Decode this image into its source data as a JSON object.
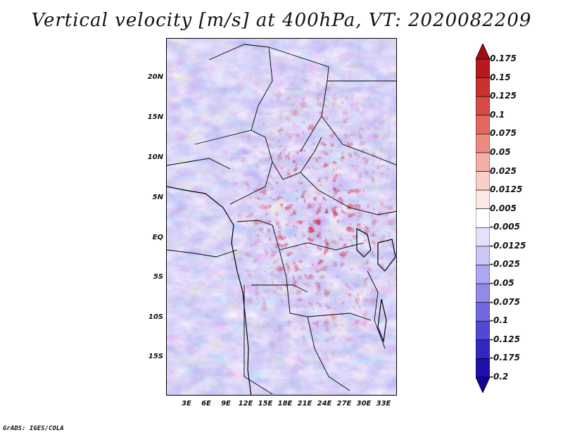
{
  "title": "Vertical velocity [m/s] at 400hPa, VT: 2020082209",
  "footer": "GrADS: IGES/COLA",
  "map": {
    "lon_range": [
      0,
      35
    ],
    "lat_range": [
      -20,
      25
    ],
    "lat_labels": [
      "20N",
      "15N",
      "10N",
      "5N",
      "EQ",
      "5S",
      "10S",
      "15S"
    ],
    "lon_labels": [
      "3E",
      "6E",
      "9E",
      "12E",
      "15E",
      "18E",
      "21E",
      "24E",
      "27E",
      "30E",
      "33E"
    ]
  },
  "colorbar": {
    "labels": [
      "0.175",
      "0.15",
      "0.125",
      "0.1",
      "0.075",
      "0.05",
      "0.025",
      "0.0125",
      "0.005",
      "-0.005",
      "-0.0125",
      "-0.025",
      "-0.05",
      "-0.075",
      "-0.1",
      "-0.125",
      "-0.175",
      "-0.2"
    ],
    "colors": [
      "#a00e14",
      "#b8191e",
      "#c93230",
      "#d74a45",
      "#e2675e",
      "#ec8a80",
      "#f4aea6",
      "#f9cdc8",
      "#fce9e6",
      "#ffffff",
      "#e3e1fb",
      "#cac6f6",
      "#aea8ef",
      "#918ae8",
      "#7269de",
      "#5149d2",
      "#3128c0",
      "#1e10a8",
      "#12039a"
    ]
  }
}
